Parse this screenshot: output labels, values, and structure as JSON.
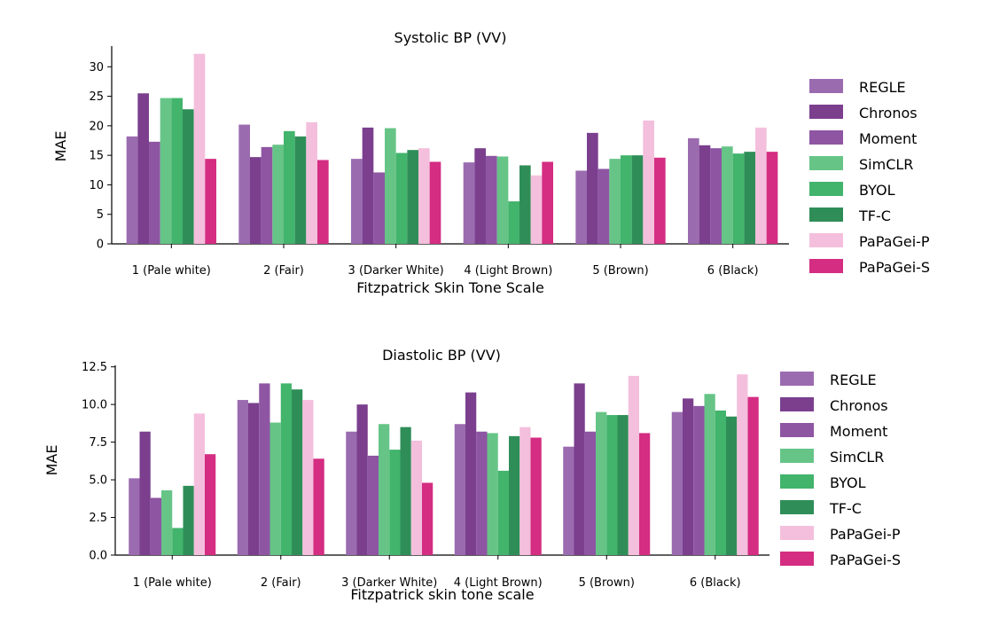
{
  "chart_data": [
    {
      "type": "bar",
      "title": "Systolic BP (VV)",
      "xlabel": "Fitzpatrick Skin Tone Scale",
      "ylabel": "MAE",
      "ylim": [
        0,
        33.5
      ],
      "yticks": [
        "0",
        "5",
        "10",
        "15",
        "20",
        "25",
        "30"
      ],
      "categories": [
        "1 (Pale white)",
        "2 (Fair)",
        "3 (Darker White)",
        "4 (Light Brown)",
        "5 (Brown)",
        "6 (Black)"
      ],
      "grid": false,
      "legend": "right",
      "series": [
        {
          "name": "REGLE",
          "color": "#9b6bb0",
          "values": [
            18.2,
            20.2,
            14.4,
            13.8,
            12.4,
            17.9
          ]
        },
        {
          "name": "Chronos",
          "color": "#7b3f8e",
          "values": [
            25.5,
            14.7,
            19.7,
            16.2,
            18.8,
            16.7
          ]
        },
        {
          "name": "Moment",
          "color": "#8e55a3",
          "values": [
            17.3,
            16.4,
            12.1,
            14.9,
            12.7,
            16.2
          ]
        },
        {
          "name": "SimCLR",
          "color": "#66c487",
          "values": [
            24.7,
            16.8,
            19.6,
            14.8,
            14.4,
            16.5
          ]
        },
        {
          "name": "BYOL",
          "color": "#42b46c",
          "values": [
            24.7,
            19.1,
            15.4,
            7.2,
            15.0,
            15.3
          ]
        },
        {
          "name": "TF-C",
          "color": "#2f8e58",
          "values": [
            22.8,
            18.2,
            15.9,
            13.3,
            15.0,
            15.6
          ]
        },
        {
          "name": "PaPaGei-P",
          "color": "#f4bfdc",
          "values": [
            32.2,
            20.6,
            16.2,
            11.6,
            20.9,
            19.7
          ]
        },
        {
          "name": "PaPaGei-S",
          "color": "#d42d82",
          "values": [
            14.4,
            14.2,
            13.9,
            13.9,
            14.6,
            15.6
          ]
        }
      ]
    },
    {
      "type": "bar",
      "title": "Diastolic BP (VV)",
      "xlabel": "Fitzpatrick skin tone scale",
      "ylabel": "MAE",
      "ylim": [
        0,
        12.6
      ],
      "yticks": [
        "0.0",
        "2.5",
        "5.0",
        "7.5",
        "10.0",
        "12.5"
      ],
      "categories": [
        "1 (Pale white)",
        "2 (Fair)",
        "3 (Darker White)",
        "4 (Light Brown)",
        "5 (Brown)",
        "6 (Black)"
      ],
      "grid": false,
      "legend": "right",
      "series": [
        {
          "name": "REGLE",
          "color": "#9b6bb0",
          "values": [
            5.1,
            10.3,
            8.2,
            8.7,
            7.2,
            9.5
          ]
        },
        {
          "name": "Chronos",
          "color": "#7b3f8e",
          "values": [
            8.2,
            10.1,
            10.0,
            10.8,
            11.4,
            10.4
          ]
        },
        {
          "name": "Moment",
          "color": "#8e55a3",
          "values": [
            3.8,
            11.4,
            6.6,
            8.2,
            8.2,
            9.9
          ]
        },
        {
          "name": "SimCLR",
          "color": "#66c487",
          "values": [
            4.3,
            8.8,
            8.7,
            8.1,
            9.5,
            10.7
          ]
        },
        {
          "name": "BYOL",
          "color": "#42b46c",
          "values": [
            1.8,
            11.4,
            7.0,
            5.6,
            9.3,
            9.6
          ]
        },
        {
          "name": "TF-C",
          "color": "#2f8e58",
          "values": [
            4.6,
            11.0,
            8.5,
            7.9,
            9.3,
            9.2
          ]
        },
        {
          "name": "PaPaGei-P",
          "color": "#f4bfdc",
          "values": [
            9.4,
            10.3,
            7.6,
            8.5,
            11.9,
            12.0
          ]
        },
        {
          "name": "PaPaGei-S",
          "color": "#d42d82",
          "values": [
            6.7,
            6.4,
            4.8,
            7.8,
            8.1,
            10.5
          ]
        }
      ]
    }
  ]
}
